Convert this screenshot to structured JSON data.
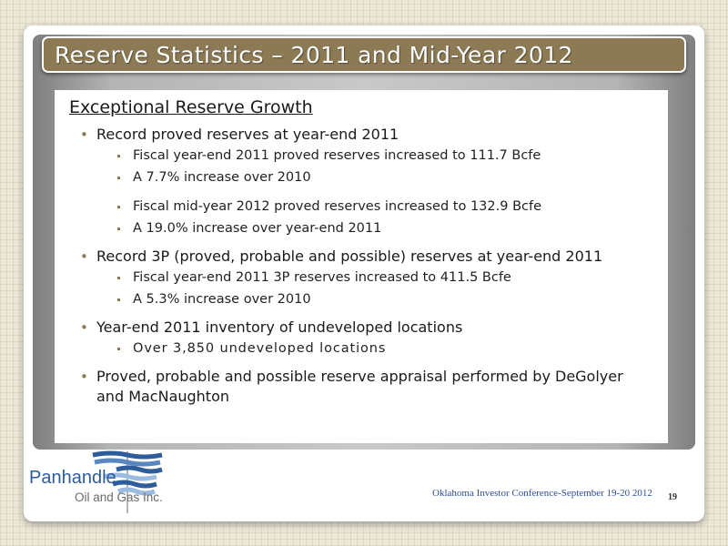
{
  "slide": {
    "title": "Reserve Statistics – 2011 and Mid-Year 2012",
    "subtitle": "Exceptional Reserve Growth",
    "bullets": [
      {
        "text": "Record proved reserves at year-end 2011",
        "subs": [
          "Fiscal year-end 2011 proved reserves increased to 111.7 Bcfe",
          "A 7.7% increase over 2010",
          "Fiscal mid-year 2012 proved reserves increased to 132.9 Bcfe",
          "A 19.0% increase over year-end 2011"
        ]
      },
      {
        "text": "Record 3P (proved, probable and possible) reserves at year-end 2011",
        "subs": [
          "Fiscal year-end 2011 3P reserves increased to 411.5 Bcfe",
          "A 5.3% increase over 2010"
        ]
      },
      {
        "text": "Year-end 2011 inventory of undeveloped locations",
        "subs": [
          "Over 3,850 undeveloped locations"
        ]
      },
      {
        "text": "Proved, probable and possible reserve appraisal performed by DeGolyer and MacNaughton",
        "subs": []
      }
    ]
  },
  "logo": {
    "line1": "Panhandle",
    "line2": "Oil and Gas Inc."
  },
  "footer": {
    "conference": "Oklahoma Investor Conference-September 19-20 2012",
    "page_number": "19"
  },
  "colors": {
    "title_bar": "#8b7a54",
    "logo_blue": "#2d5d9b",
    "footer_text": "#2d4f8e"
  }
}
